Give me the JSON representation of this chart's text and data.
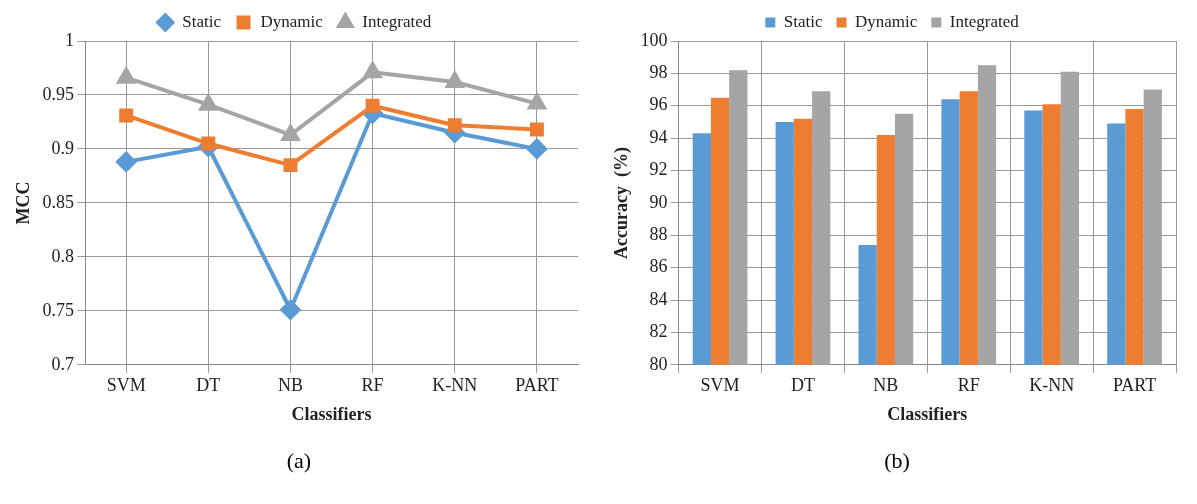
{
  "chart_data": [
    {
      "type": "line",
      "xlabel": "Classifiers",
      "ylabel": "MCC",
      "categories": [
        "SVM",
        "DT",
        "NB",
        "RF",
        "K-NN",
        "PART"
      ],
      "ylim": [
        0.7,
        1
      ],
      "yticks": [
        0.7,
        0.75,
        0.8,
        0.85,
        0.9,
        0.95,
        1
      ],
      "grid": true,
      "legend": "top",
      "annotations": [
        "(a)"
      ],
      "series": [
        {
          "name": "Static",
          "color": "#5b9bd5",
          "marker": "diamond",
          "values": [
            0.888,
            0.902,
            0.751,
            0.933,
            0.915,
            0.9
          ]
        },
        {
          "name": "Dynamic",
          "color": "#ed7d31",
          "marker": "square",
          "values": [
            0.931,
            0.905,
            0.885,
            0.94,
            0.922,
            0.918
          ]
        },
        {
          "name": "Integrated",
          "color": "#a5a5a5",
          "marker": "triangle",
          "values": [
            0.966,
            0.941,
            0.913,
            0.971,
            0.962,
            0.942
          ]
        }
      ]
    },
    {
      "type": "bar",
      "xlabel": "Classifiers",
      "ylabel": "Accuracy  (%)",
      "categories": [
        "SVM",
        "DT",
        "NB",
        "RF",
        "K-NN",
        "PART"
      ],
      "ylim": [
        80,
        100
      ],
      "yticks": [
        80,
        82,
        84,
        86,
        88,
        90,
        92,
        94,
        96,
        98,
        100
      ],
      "grid": true,
      "legend": "top",
      "annotations": [
        "(b)"
      ],
      "series": [
        {
          "name": "Static",
          "color": "#5b9bd5",
          "values": [
            94.3,
            95.0,
            87.4,
            96.4,
            95.7,
            94.9
          ]
        },
        {
          "name": "Dynamic",
          "color": "#ed7d31",
          "values": [
            96.5,
            95.2,
            94.2,
            96.9,
            96.1,
            95.8
          ]
        },
        {
          "name": "Integrated",
          "color": "#a5a5a5",
          "values": [
            98.2,
            96.9,
            95.5,
            98.5,
            98.1,
            97.0
          ]
        }
      ]
    }
  ]
}
